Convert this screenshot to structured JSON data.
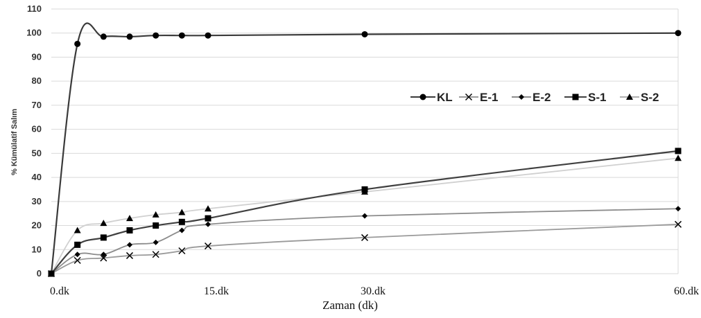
{
  "chart_data": {
    "type": "line",
    "xlabel": "Zaman (dk)",
    "ylabel": "% Kümülatif Salım",
    "xlim": [
      0,
      60
    ],
    "ylim": [
      0,
      110
    ],
    "yticks": [
      0,
      10,
      20,
      30,
      40,
      50,
      60,
      70,
      80,
      90,
      100,
      110
    ],
    "xticks": [
      {
        "value": 0,
        "label": "0.dk"
      },
      {
        "value": 15,
        "label": "15.dk"
      },
      {
        "value": 30,
        "label": "30.dk"
      },
      {
        "value": 60,
        "label": "60.dk"
      }
    ],
    "grid": "horizontal",
    "legend_position": "right",
    "x": [
      0,
      2.5,
      5,
      7.5,
      10,
      12.5,
      15,
      30,
      60
    ],
    "series": [
      {
        "name": "KL",
        "marker": "circle",
        "color": "#3a3a3a",
        "values": [
          0,
          95.5,
          98.5,
          98.5,
          99,
          99,
          99,
          99.5,
          100
        ]
      },
      {
        "name": "E-1",
        "marker": "x",
        "color": "#9a9a9a",
        "values": [
          0,
          5.5,
          6.5,
          7.5,
          8,
          9.5,
          11.5,
          15,
          20.5
        ]
      },
      {
        "name": "E-2",
        "marker": "diamond",
        "color": "#8c8c8c",
        "values": [
          0,
          8,
          8,
          12,
          13,
          18,
          20.5,
          24,
          27
        ]
      },
      {
        "name": "S-1",
        "marker": "square",
        "color": "#404040",
        "values": [
          0,
          12,
          15,
          18,
          20,
          21.5,
          23,
          35,
          51
        ]
      },
      {
        "name": "S-2",
        "marker": "triangle",
        "color": "#d0d0d0",
        "values": [
          0,
          18,
          21,
          23,
          24.5,
          25.5,
          27,
          34,
          48
        ]
      }
    ]
  }
}
